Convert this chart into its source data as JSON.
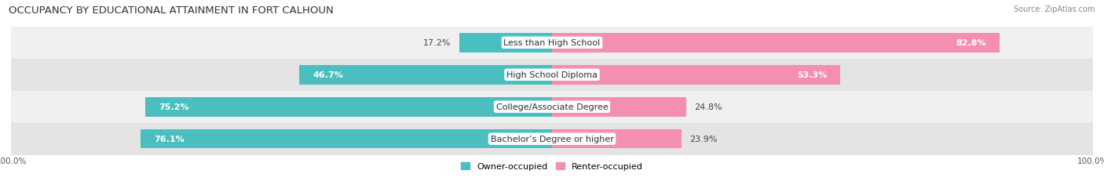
{
  "title": "OCCUPANCY BY EDUCATIONAL ATTAINMENT IN FORT CALHOUN",
  "source": "Source: ZipAtlas.com",
  "categories": [
    "Less than High School",
    "High School Diploma",
    "College/Associate Degree",
    "Bachelor’s Degree or higher"
  ],
  "owner_pct": [
    17.2,
    46.7,
    75.2,
    76.1
  ],
  "renter_pct": [
    82.8,
    53.3,
    24.8,
    23.9
  ],
  "owner_color": "#4bbfbf",
  "renter_color": "#f48fb1",
  "row_bg_colors": [
    "#f0f0f0",
    "#e4e4e4"
  ],
  "title_fontsize": 9.5,
  "label_fontsize": 8,
  "pct_fontsize": 8,
  "legend_fontsize": 8,
  "axis_label_fontsize": 7.5,
  "bar_height": 0.6,
  "figsize": [
    14.06,
    2.32
  ],
  "dpi": 100
}
